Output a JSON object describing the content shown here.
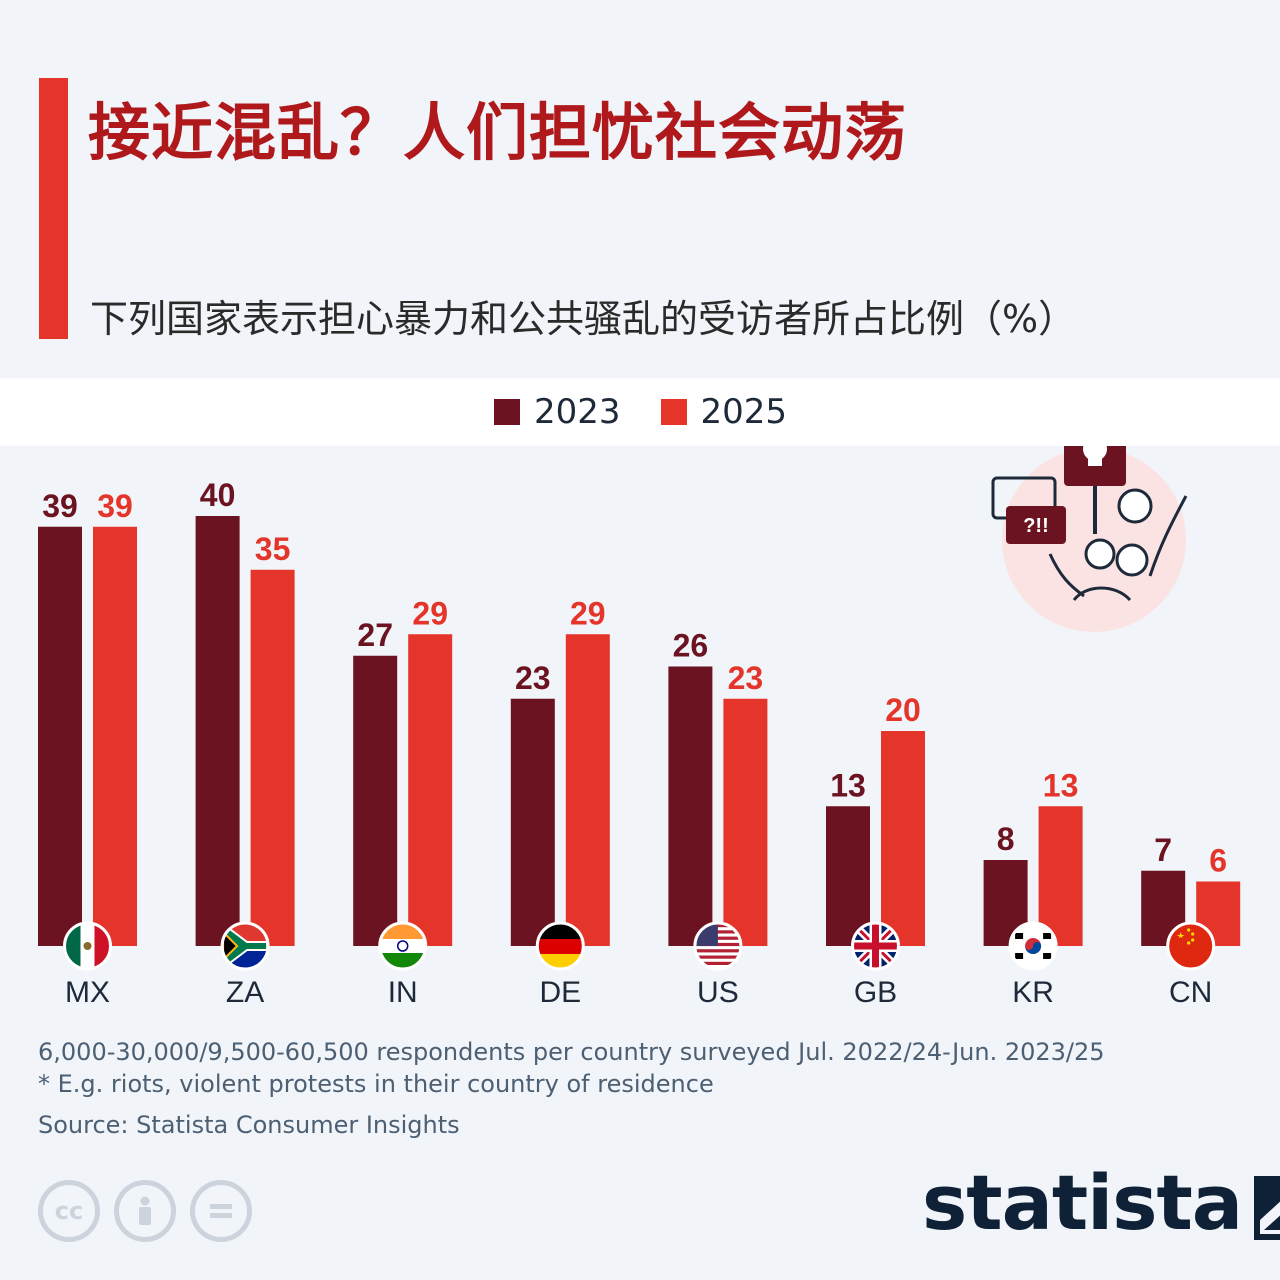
{
  "header": {
    "title": "接近混乱？人们担忧社会动荡",
    "subtitle": "下列国家表示担心暴力和公共骚乱的受访者所占比例（%）"
  },
  "colors": {
    "accent": "#e5352a",
    "series_2023": "#6b1320",
    "series_2025": "#e5352a",
    "title": "#b0191c"
  },
  "legend": {
    "items": [
      "2023",
      "2025"
    ]
  },
  "chart_data": {
    "type": "bar",
    "categories": [
      "MX",
      "ZA",
      "IN",
      "DE",
      "US",
      "GB",
      "KR",
      "CN"
    ],
    "series": [
      {
        "name": "2023",
        "values": [
          39,
          40,
          27,
          23,
          26,
          13,
          8,
          7
        ],
        "labels": [
          "39",
          "40",
          "27",
          "23",
          "26",
          "13",
          "8",
          "7"
        ],
        "color": "#6b1320"
      },
      {
        "name": "2025",
        "values": [
          39,
          35,
          29,
          29,
          23,
          20,
          13,
          6
        ],
        "labels": [
          "39",
          "35",
          "29",
          "29",
          "23",
          "20",
          "13",
          "6"
        ],
        "color": "#e5352a"
      }
    ],
    "title": "接近混乱？人们担忧社会动荡",
    "ylabel": "%",
    "ylim": [
      0,
      42
    ],
    "grid": false,
    "legend_position": "top-center"
  },
  "illustration": {
    "sign_text": "?!!",
    "icon": "skull-protest-icon"
  },
  "footer": {
    "note1": "6,000-30,000/9,500-60,500 respondents per country surveyed Jul. 2022/24-Jun. 2023/25",
    "note2": "* E.g. riots, violent protests in their country of residence",
    "source": "Source: Statista Consumer Insights",
    "brand": "statista",
    "license_cc": "cc"
  }
}
